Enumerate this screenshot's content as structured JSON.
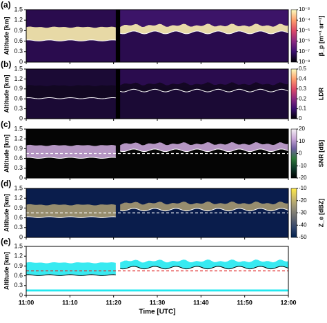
{
  "chart_data": [
    {
      "type": "heatmap",
      "panel_label": "(a)",
      "ylabel": "Altitude [km]",
      "ylim": [
        0,
        1.5
      ],
      "yticks": [
        0,
        0.3,
        0.6,
        0.9,
        1.2,
        1.5
      ],
      "xlim": [
        0,
        60
      ],
      "xticks": [
        0,
        10,
        20,
        30,
        40,
        50,
        60
      ],
      "background": "#2a0c4e",
      "layer_color": "#fcf0b0",
      "colorbar_label": "β_p [m⁻¹ sr⁻¹]",
      "clim": [
        -8,
        -3
      ],
      "cticks": [
        {
          "value": -8,
          "label": "10⁻⁸"
        },
        {
          "value": -7,
          "label": "10⁻⁷"
        },
        {
          "value": -6,
          "label": "10⁻⁶"
        },
        {
          "value": -5,
          "label": "10⁻⁵"
        },
        {
          "value": -4,
          "label": "10⁻⁴"
        },
        {
          "value": -3,
          "label": "10⁻³"
        }
      ],
      "colormap": [
        "#000004",
        "#3b0f70",
        "#8c2981",
        "#de4968",
        "#fe9f6d",
        "#fcfdbf"
      ]
    },
    {
      "type": "heatmap",
      "panel_label": "(b)",
      "ylabel": "Altitude [km]",
      "ylim": [
        0,
        1.5
      ],
      "yticks": [
        0,
        0.3,
        0.6,
        0.9,
        1.2,
        1.5
      ],
      "xlim": [
        0,
        60
      ],
      "xticks": [
        0,
        10,
        20,
        30,
        40,
        50,
        60
      ],
      "background": "#1b0a35",
      "layer_color": "#120720",
      "colorbar_label": "LDR",
      "clim": [
        0,
        0.5
      ],
      "cticks": [
        0,
        0.1,
        0.2,
        0.3,
        0.4,
        0.5
      ],
      "colormap": [
        "#000004",
        "#3b0f70",
        "#8c2981",
        "#de4968",
        "#fe9f6d",
        "#fcfdbf"
      ]
    },
    {
      "type": "heatmap",
      "panel_label": "(c)",
      "ylabel": "Altitude [km]",
      "ylim": [
        0,
        1.5
      ],
      "yticks": [
        0,
        0.3,
        0.6,
        0.9,
        1.2,
        1.5
      ],
      "xlim": [
        0,
        60
      ],
      "xticks": [
        0,
        10,
        20,
        30,
        40,
        50,
        60
      ],
      "background": "#050505",
      "layer_color": "#c9a6d8",
      "reference_line": {
        "y": 0.75,
        "color": "#ffffff"
      },
      "colorbar_label": "SNR [dB]",
      "clim": [
        -20,
        20
      ],
      "cticks": [
        -20,
        -10,
        0,
        10,
        20
      ],
      "colormap": [
        "#000000",
        "#0e3a2a",
        "#2f7a3a",
        "#6f5fa0",
        "#c9a6d8",
        "#f4f0f4"
      ]
    },
    {
      "type": "heatmap",
      "panel_label": "(d)",
      "ylabel": "Altitude [km]",
      "ylim": [
        0,
        1.5
      ],
      "yticks": [
        0,
        0.3,
        0.6,
        0.9,
        1.2,
        1.5
      ],
      "xlim": [
        0,
        60
      ],
      "xticks": [
        0,
        10,
        20,
        30,
        40,
        50,
        60
      ],
      "background": "#0a1d4c",
      "layer_color": "#a69a72",
      "reference_line": {
        "y": 0.75,
        "color": "#ffffff"
      },
      "colorbar_label": "Z_e [dBZ]",
      "clim": [
        -50,
        -10
      ],
      "cticks": [
        -50,
        -40,
        -30,
        -20,
        -10
      ],
      "colormap": [
        "#00204d",
        "#31446b",
        "#666970",
        "#958f78",
        "#cbba69",
        "#ffea46"
      ]
    },
    {
      "type": "mask",
      "panel_label": "(e)",
      "ylabel": "Altitude [km]",
      "xlabel": "Time [UTC]",
      "ylim": [
        0,
        1.5
      ],
      "yticks": [
        0,
        0.3,
        0.6,
        0.9,
        1.2,
        1.5
      ],
      "xlim": [
        0,
        60
      ],
      "xticks": [
        {
          "value": 0,
          "label": "11:00"
        },
        {
          "value": 10,
          "label": "11:10"
        },
        {
          "value": 20,
          "label": "11:20"
        },
        {
          "value": 30,
          "label": "11:30"
        },
        {
          "value": 40,
          "label": "11:40"
        },
        {
          "value": 50,
          "label": "11:50"
        },
        {
          "value": 60,
          "label": "12:00"
        }
      ],
      "background": "#ffffff",
      "layer_color": "#22e8f0",
      "reference_line": {
        "y": 0.75,
        "color": "#e02020"
      }
    }
  ]
}
